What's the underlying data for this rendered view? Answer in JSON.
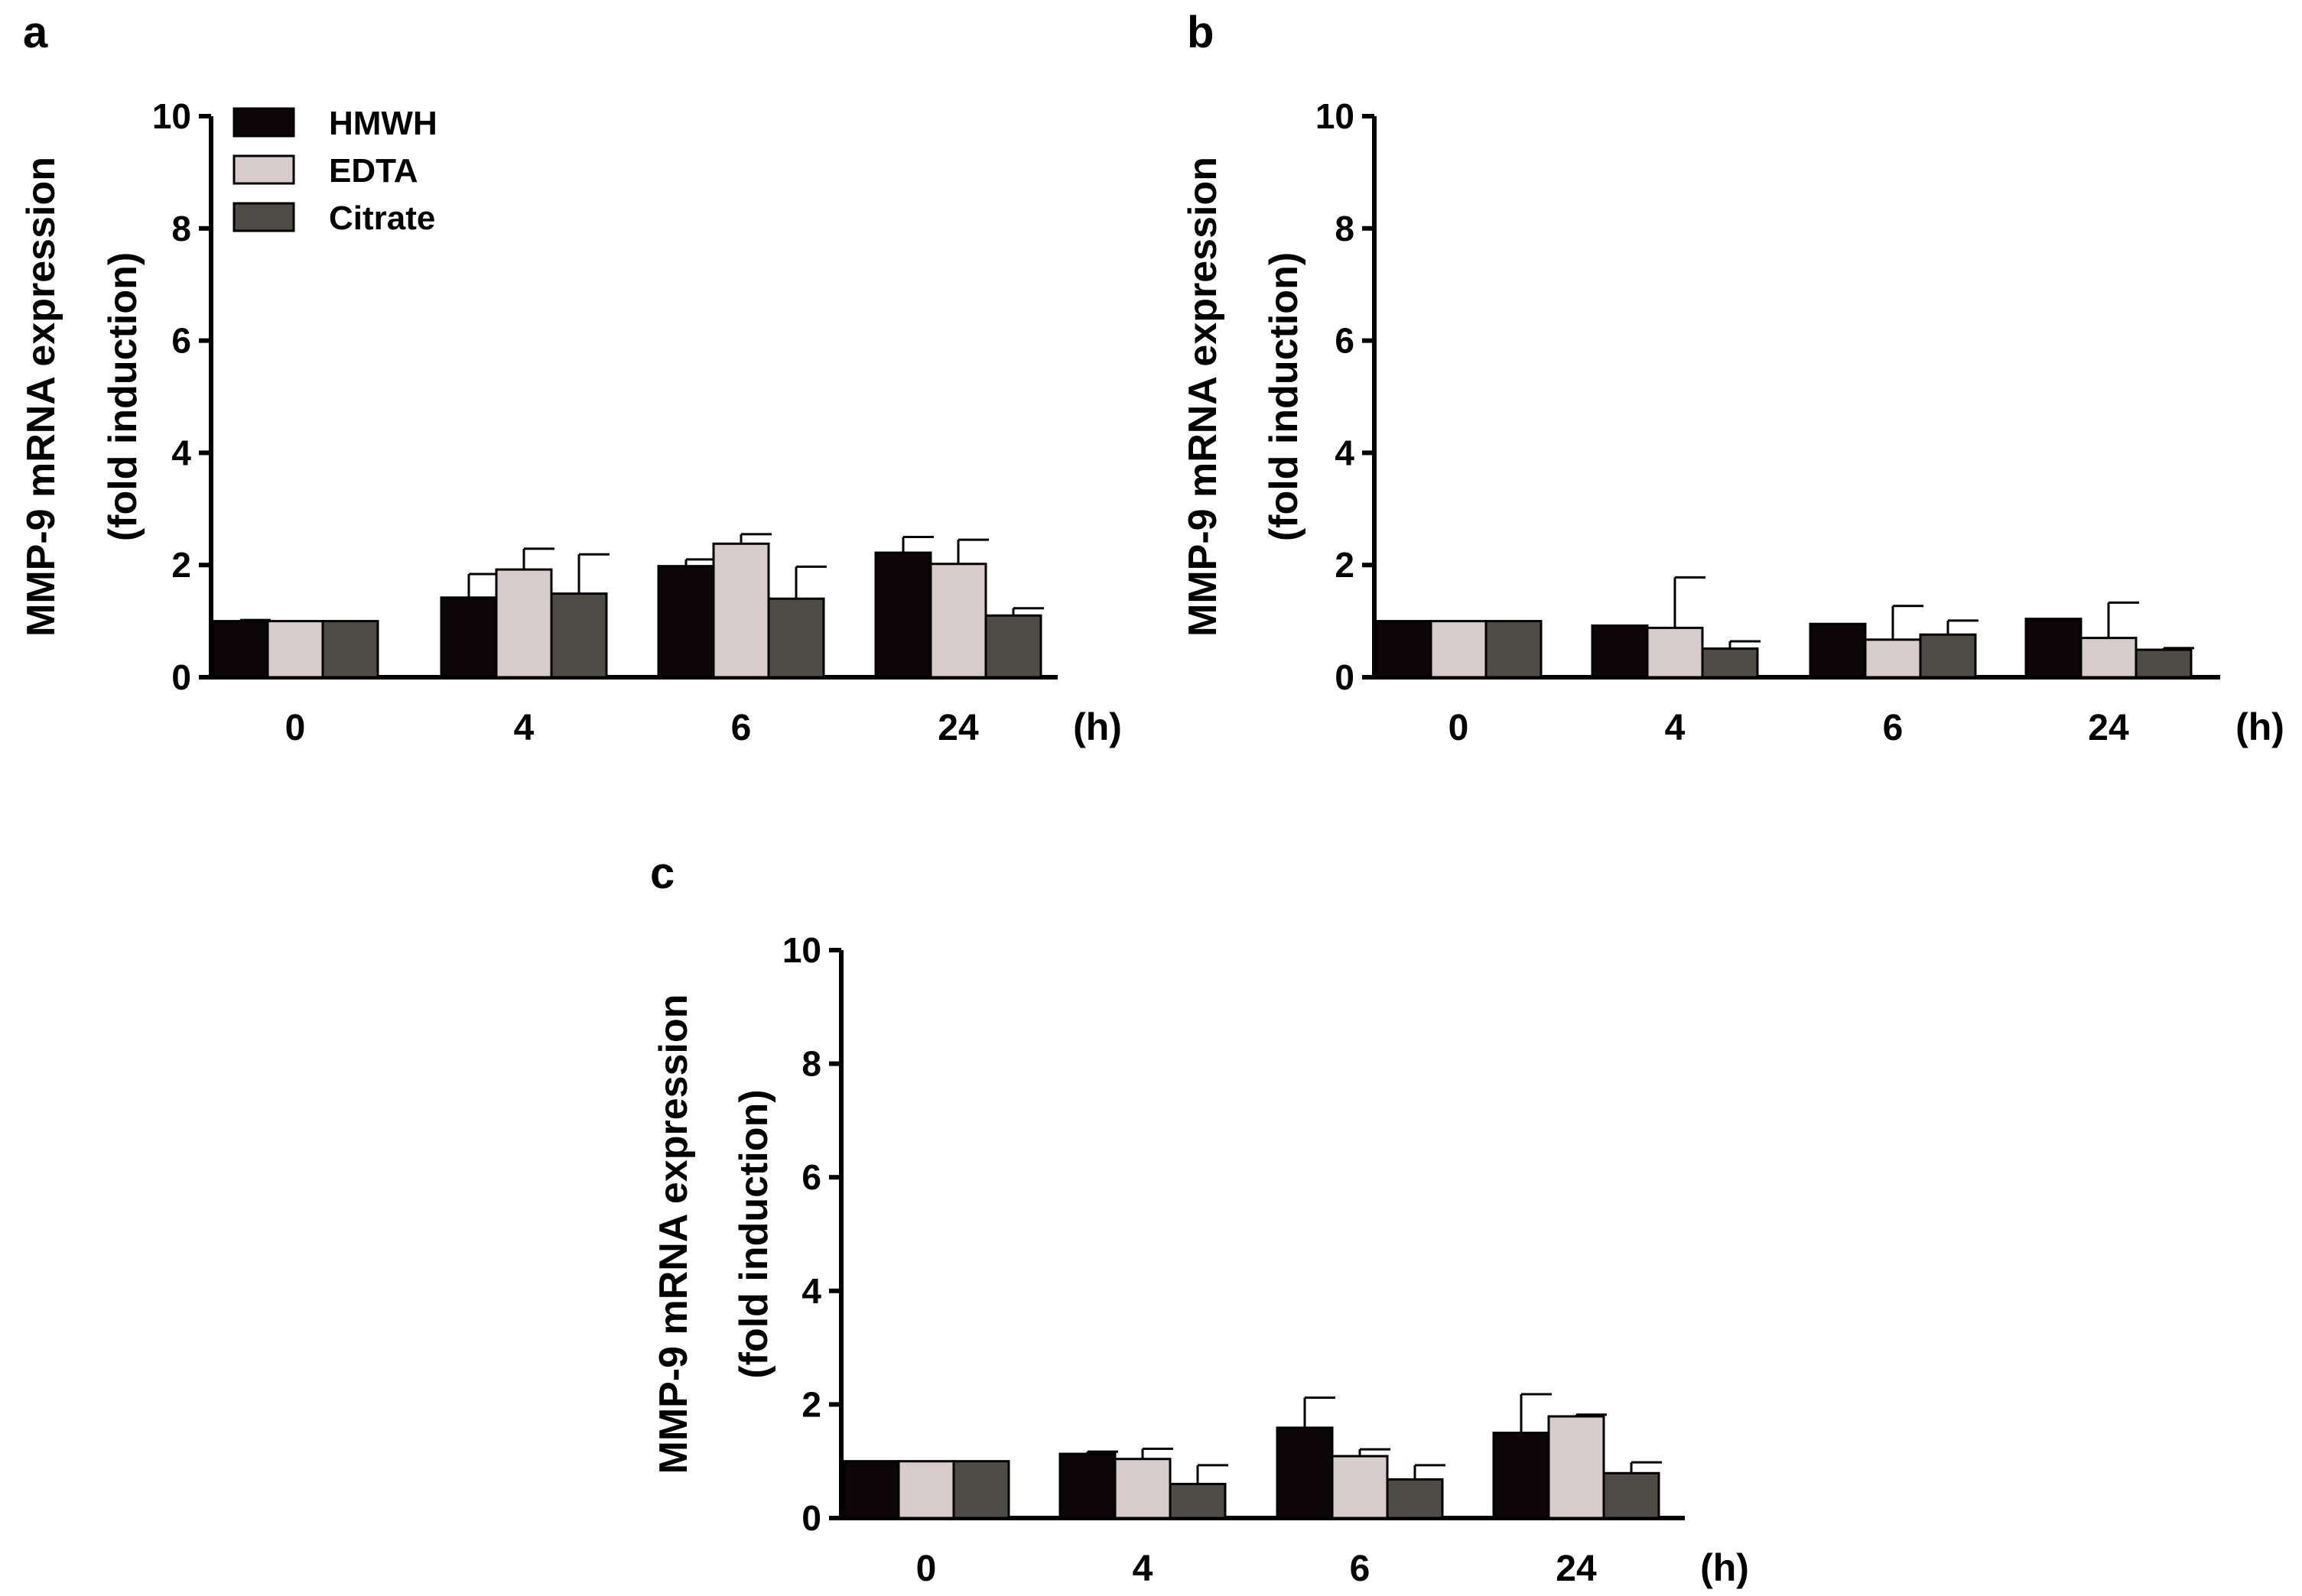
{
  "chart_data": [
    {
      "panel": "a",
      "type": "bar",
      "ylabel_line1": "MMP-9 mRNA expression",
      "ylabel_line2": "(fold induction)",
      "xunit": "(h)",
      "categories": [
        "0",
        "4",
        "6",
        "24"
      ],
      "ylim": [
        0,
        10
      ],
      "yticks": [
        "0",
        "2",
        "4",
        "6",
        "8",
        "10"
      ],
      "legend": true,
      "series": [
        {
          "name": "HMWH",
          "color": "#0d0609",
          "values": [
            1.0,
            1.42,
            1.98,
            2.22
          ],
          "errors": [
            0.02,
            0.42,
            0.12,
            0.28
          ]
        },
        {
          "name": "EDTA",
          "color": "#d7cbcb",
          "values": [
            1.0,
            1.92,
            2.38,
            2.02
          ],
          "errors": [
            0.0,
            0.37,
            0.17,
            0.43
          ]
        },
        {
          "name": "Citrate",
          "color": "#4f4b47",
          "values": [
            1.0,
            1.49,
            1.4,
            1.1
          ],
          "errors": [
            0.0,
            0.7,
            0.57,
            0.13
          ]
        }
      ]
    },
    {
      "panel": "b",
      "type": "bar",
      "ylabel_line1": "MMP-9 mRNA expression",
      "ylabel_line2": "(fold induction)",
      "xunit": "(h)",
      "categories": [
        "0",
        "4",
        "6",
        "24"
      ],
      "ylim": [
        0,
        10
      ],
      "yticks": [
        "0",
        "2",
        "4",
        "6",
        "8",
        "10"
      ],
      "legend": false,
      "series": [
        {
          "name": "HMWH",
          "color": "#0d0609",
          "values": [
            1.0,
            0.92,
            0.95,
            1.04
          ],
          "errors": [
            0.0,
            0.0,
            0.0,
            0.0
          ]
        },
        {
          "name": "EDTA",
          "color": "#d7cbcb",
          "values": [
            1.0,
            0.88,
            0.67,
            0.7
          ],
          "errors": [
            0.0,
            0.9,
            0.6,
            0.63
          ]
        },
        {
          "name": "Citrate",
          "color": "#4f4b47",
          "values": [
            1.0,
            0.51,
            0.76,
            0.49
          ],
          "errors": [
            0.0,
            0.13,
            0.25,
            0.03
          ]
        }
      ]
    },
    {
      "panel": "c",
      "type": "bar",
      "ylabel_line1": "MMP-9 mRNA expression",
      "ylabel_line2": "(fold induction)",
      "xunit": "(h)",
      "categories": [
        "0",
        "4",
        "6",
        "24"
      ],
      "ylim": [
        0,
        10
      ],
      "yticks": [
        "0",
        "2",
        "4",
        "6",
        "8",
        "10"
      ],
      "legend": false,
      "series": [
        {
          "name": "HMWH",
          "color": "#0d0609",
          "values": [
            1.0,
            1.13,
            1.59,
            1.5
          ],
          "errors": [
            0.0,
            0.04,
            0.53,
            0.68
          ]
        },
        {
          "name": "EDTA",
          "color": "#d7cbcb",
          "values": [
            1.0,
            1.04,
            1.09,
            1.79
          ],
          "errors": [
            0.0,
            0.18,
            0.12,
            0.03
          ]
        },
        {
          "name": "Citrate",
          "color": "#4f4b47",
          "values": [
            1.0,
            0.6,
            0.68,
            0.79
          ],
          "errors": [
            0.0,
            0.33,
            0.25,
            0.19
          ]
        }
      ]
    }
  ]
}
